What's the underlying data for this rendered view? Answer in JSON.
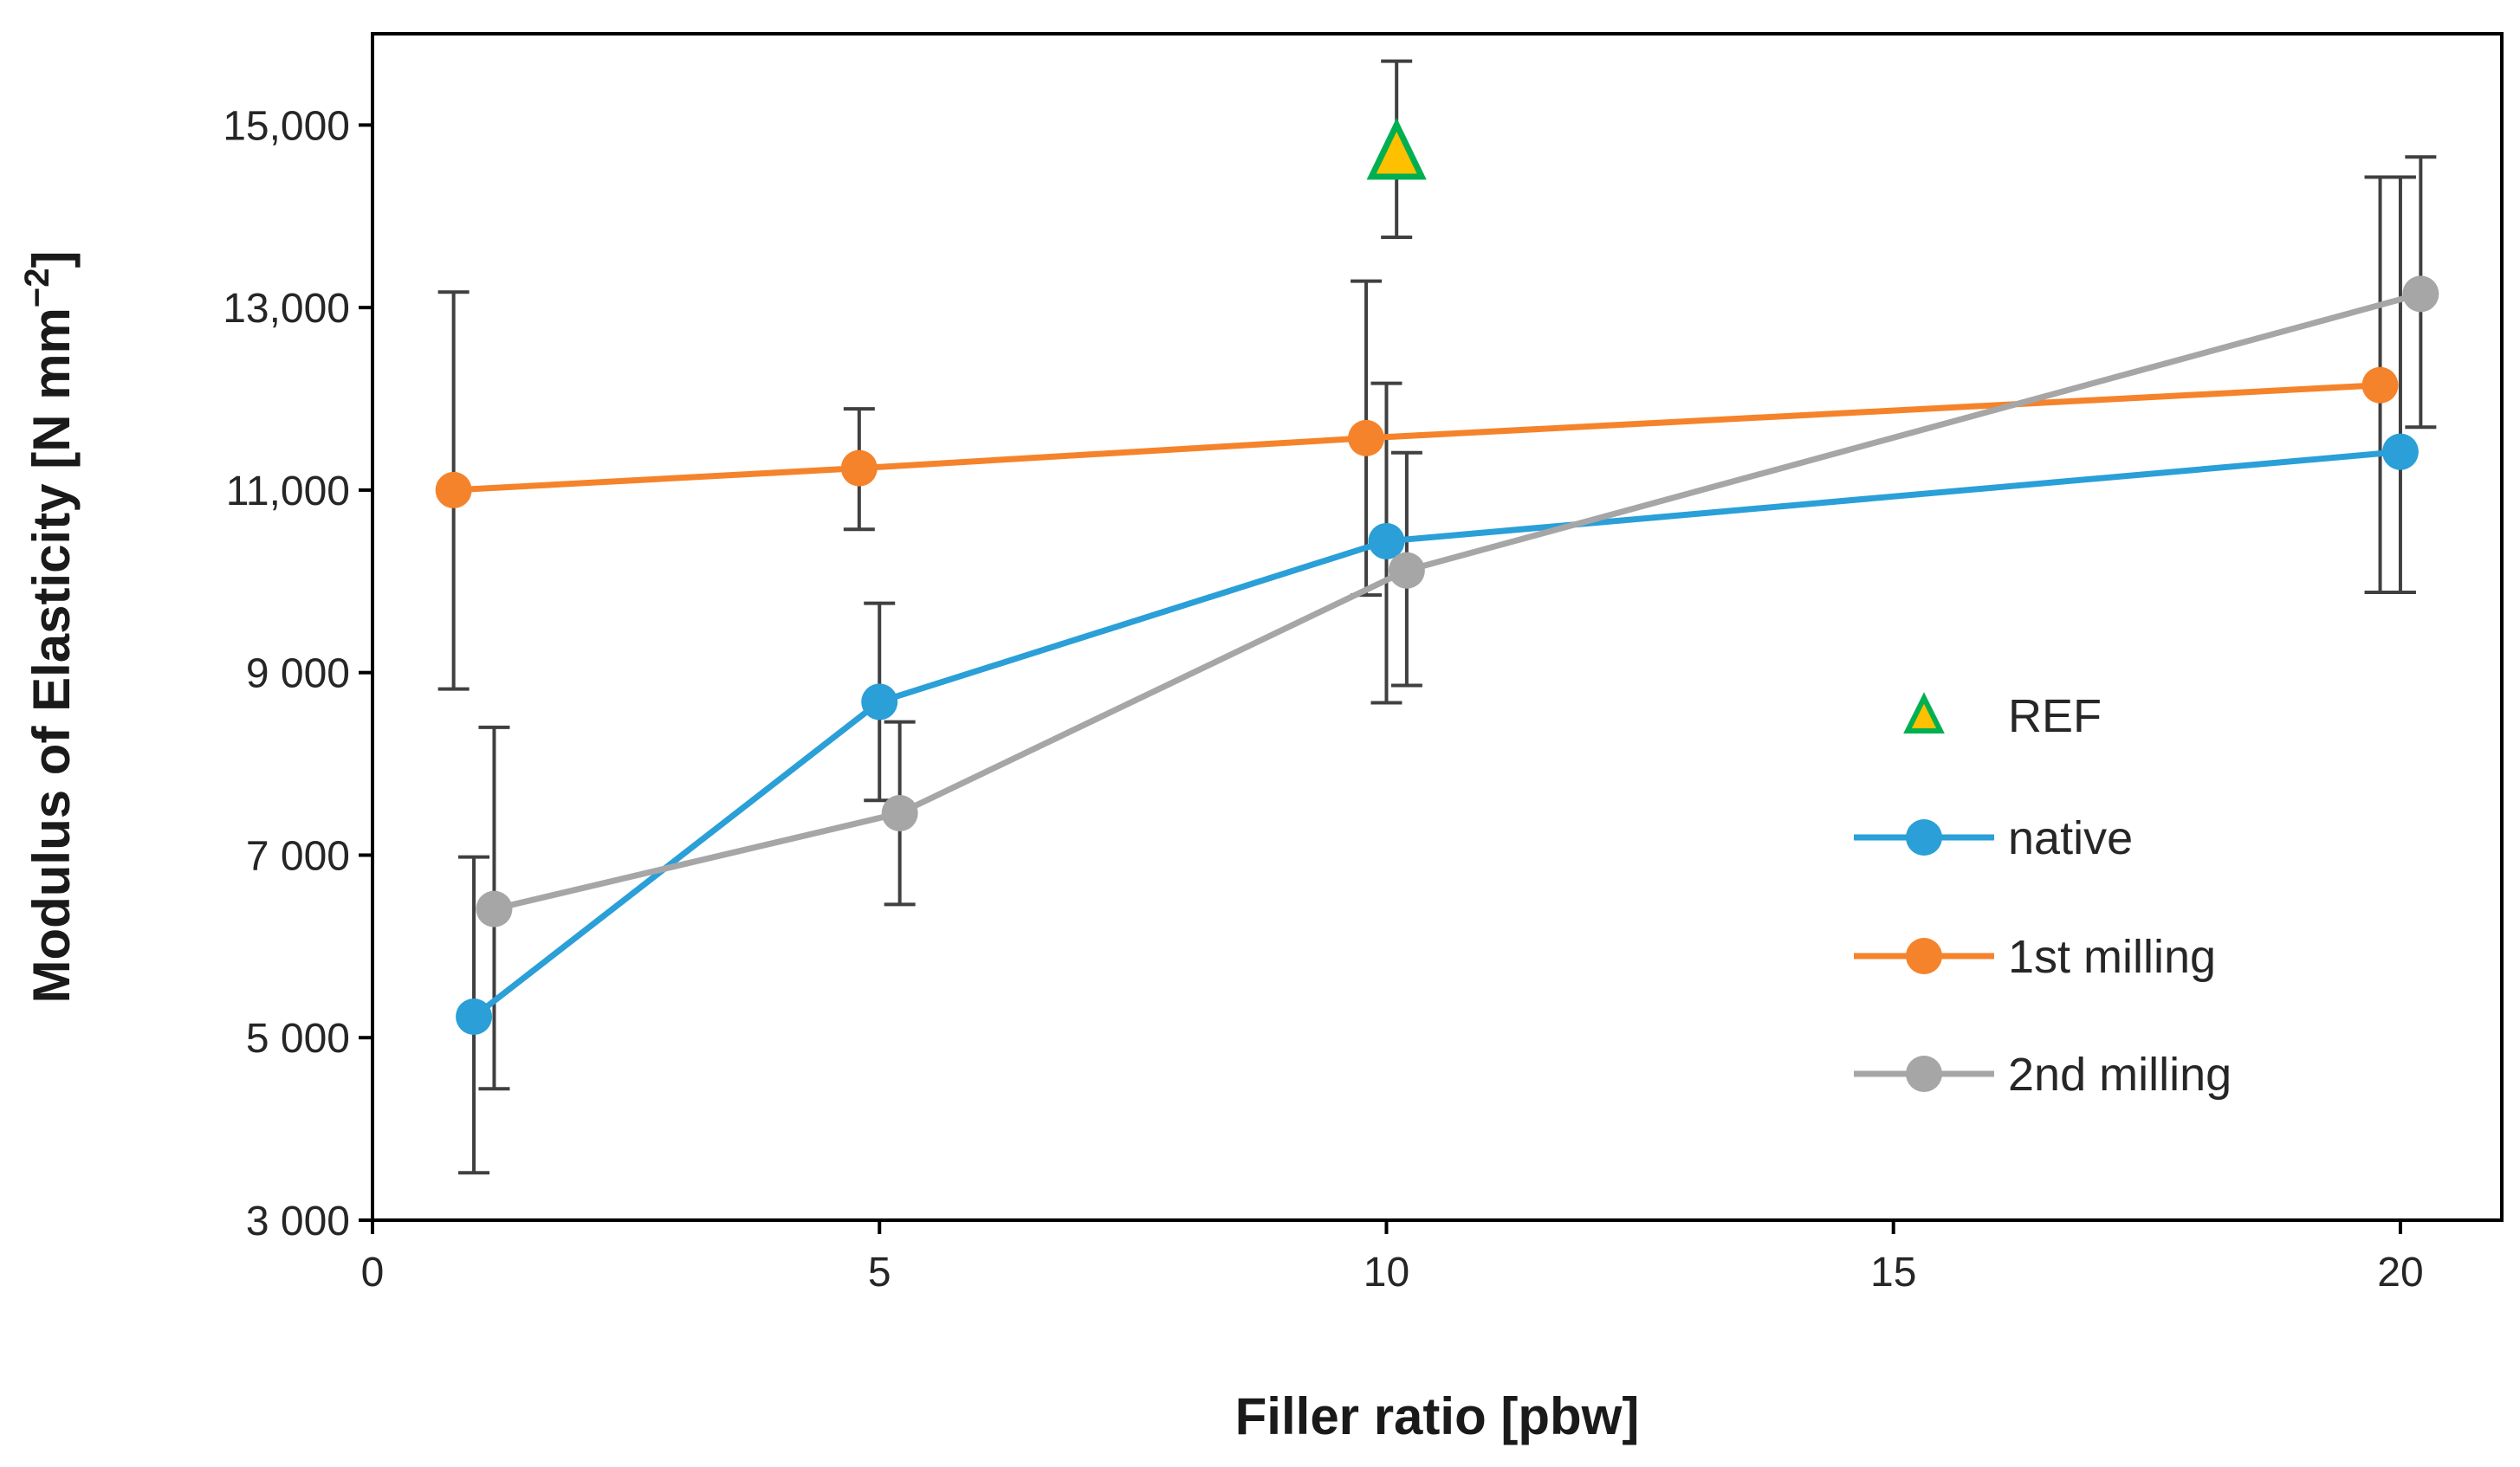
{
  "chart_data": {
    "type": "line",
    "title": "",
    "xlabel": "Filler ratio [pbw]",
    "ylabel": "Modulus of Elasticity [N mm",
    "ylabel_sup": "−2",
    "ylabel_end": "]",
    "xlim": [
      0,
      21
    ],
    "ylim": [
      3000,
      16000
    ],
    "x_ticks": [
      0,
      5,
      10,
      15,
      20
    ],
    "x_tick_labels": [
      "0",
      "5",
      "10",
      "15",
      "20"
    ],
    "y_ticks": [
      3000,
      5000,
      7000,
      9000,
      11000,
      13000,
      15000
    ],
    "y_tick_labels": [
      "3 000",
      "5 000",
      "7 000",
      "9 000",
      "11,000",
      "13,000",
      "15,000"
    ],
    "legend_position": "right",
    "series": [
      {
        "name": "REF",
        "marker": "triangle",
        "line": false,
        "color": "#FFC000",
        "edge_color": "#00B050",
        "points": [
          {
            "x": 10.1,
            "y": 14700,
            "err_low": 13770,
            "err_high": 15700
          }
        ]
      },
      {
        "name": "native",
        "marker": "circle",
        "line": true,
        "color": "#2A9FD8",
        "points": [
          {
            "x": 1.0,
            "y": 5230,
            "err_low": 3520,
            "err_high": 6980
          },
          {
            "x": 5.0,
            "y": 8680,
            "err_low": 7600,
            "err_high": 9760
          },
          {
            "x": 10.0,
            "y": 10440,
            "err_low": 8670,
            "err_high": 12170
          },
          {
            "x": 20.0,
            "y": 11420,
            "err_low": 9880,
            "err_high": 14430
          }
        ]
      },
      {
        "name": "1st milling",
        "marker": "circle",
        "line": true,
        "color": "#F5832B",
        "points": [
          {
            "x": 0.8,
            "y": 11000,
            "err_low": 8820,
            "err_high": 13170
          },
          {
            "x": 4.8,
            "y": 11240,
            "err_low": 10570,
            "err_high": 11890
          },
          {
            "x": 9.8,
            "y": 11570,
            "err_low": 9850,
            "err_high": 13290
          },
          {
            "x": 19.8,
            "y": 12150,
            "err_low": 9880,
            "err_high": 14430
          }
        ]
      },
      {
        "name": "2nd milling",
        "marker": "circle",
        "line": true,
        "color": "#A6A6A6",
        "points": [
          {
            "x": 1.2,
            "y": 6410,
            "err_low": 4440,
            "err_high": 8400
          },
          {
            "x": 5.2,
            "y": 7460,
            "err_low": 6460,
            "err_high": 8460
          },
          {
            "x": 10.2,
            "y": 10120,
            "err_low": 8860,
            "err_high": 11410
          },
          {
            "x": 20.2,
            "y": 13150,
            "err_low": 11690,
            "err_high": 14650
          }
        ]
      }
    ]
  }
}
